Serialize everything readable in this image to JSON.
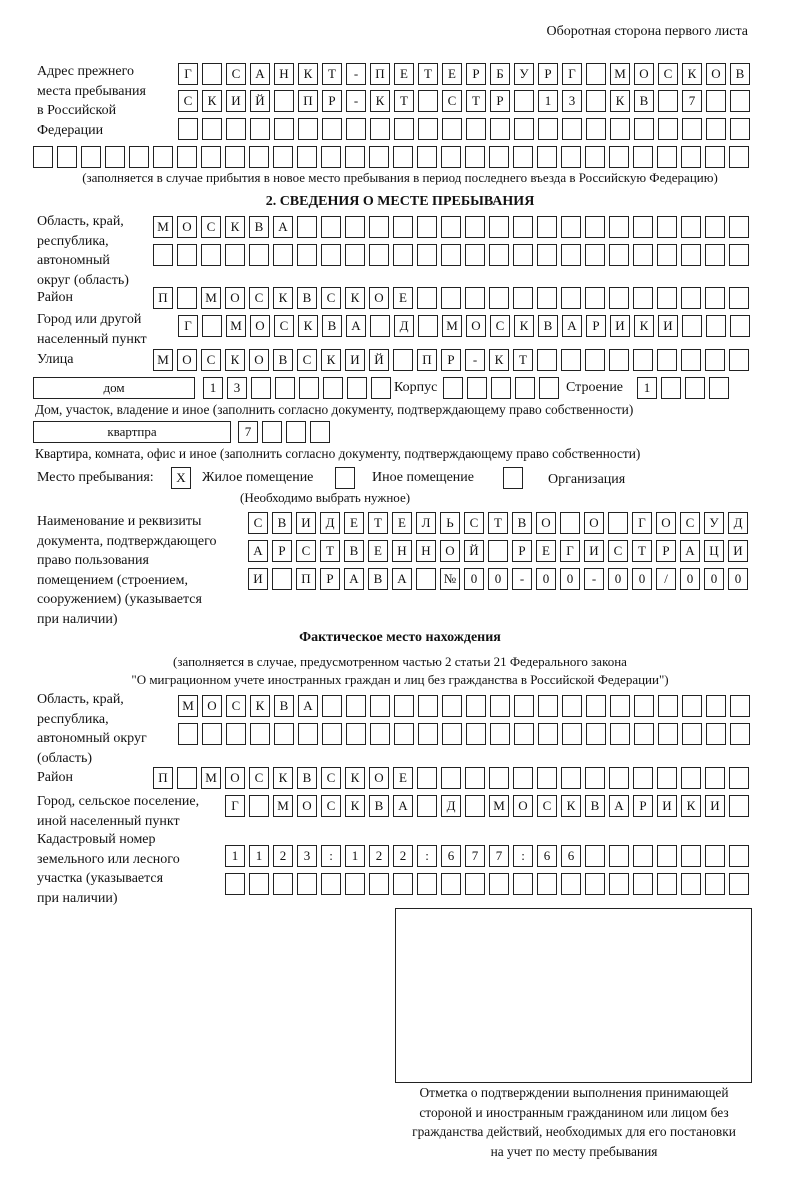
{
  "header": {
    "page_side": "Оборотная сторона первого листа"
  },
  "previous_address": {
    "label": "Адрес прежнего\nместа пребывания\nв Российской\nФедерации",
    "rows": [
      [
        "Г",
        "",
        "С",
        "А",
        "Н",
        "К",
        "Т",
        "-",
        "П",
        "Е",
        "Т",
        "Е",
        "Р",
        "Б",
        "У",
        "Р",
        "Г",
        "",
        "М",
        "О",
        "С",
        "К",
        "О",
        "В"
      ],
      [
        "С",
        "К",
        "И",
        "Й",
        "",
        "П",
        "Р",
        "-",
        "К",
        "Т",
        "",
        "С",
        "Т",
        "Р",
        "",
        "1",
        "3",
        "",
        "К",
        "В",
        "",
        "7",
        "",
        ""
      ],
      [
        "",
        "",
        "",
        "",
        "",
        "",
        "",
        "",
        "",
        "",
        "",
        "",
        "",
        "",
        "",
        "",
        "",
        "",
        "",
        "",
        "",
        "",
        "",
        ""
      ],
      [
        "",
        "",
        "",
        "",
        "",
        "",
        "",
        "",
        "",
        "",
        "",
        "",
        "",
        "",
        "",
        "",
        "",
        "",
        "",
        "",
        "",
        "",
        "",
        "",
        "",
        "",
        "",
        "",
        "",
        ""
      ]
    ],
    "note": "(заполняется в случае прибытия в новое место пребывания в период последнего въезда в Российскую Федерацию)"
  },
  "section2": {
    "title": "2. СВЕДЕНИЯ О МЕСТЕ ПРЕБЫВАНИЯ",
    "region_label": "Область, край,\nреспублика,\nавтономный\nокруг (область)",
    "region_rows": [
      [
        "М",
        "О",
        "С",
        "К",
        "В",
        "А",
        "",
        "",
        "",
        "",
        "",
        "",
        "",
        "",
        "",
        "",
        "",
        "",
        "",
        "",
        "",
        "",
        "",
        "",
        ""
      ],
      [
        "",
        "",
        "",
        "",
        "",
        "",
        "",
        "",
        "",
        "",
        "",
        "",
        "",
        "",
        "",
        "",
        "",
        "",
        "",
        "",
        "",
        "",
        "",
        "",
        ""
      ]
    ],
    "district_label": "Район",
    "district_row": [
      "П",
      "",
      "М",
      "О",
      "С",
      "К",
      "В",
      "С",
      "К",
      "О",
      "Е",
      "",
      "",
      "",
      "",
      "",
      "",
      "",
      "",
      "",
      "",
      "",
      "",
      "",
      ""
    ],
    "city_label": "Город или другой\nнаселенный пункт",
    "city_row": [
      "Г",
      "",
      "М",
      "О",
      "С",
      "К",
      "В",
      "А",
      "",
      "Д",
      "",
      "М",
      "О",
      "С",
      "К",
      "В",
      "А",
      "Р",
      "И",
      "К",
      "И",
      "",
      "",
      ""
    ],
    "street_label": "Улица",
    "street_row": [
      "М",
      "О",
      "С",
      "К",
      "О",
      "В",
      "С",
      "К",
      "И",
      "Й",
      "",
      "П",
      "Р",
      "-",
      "К",
      "Т",
      "",
      "",
      "",
      "",
      "",
      "",
      "",
      "",
      ""
    ],
    "house_type": "дом",
    "house_cells": [
      "1",
      "3",
      "",
      "",
      "",
      "",
      "",
      ""
    ],
    "korpus_label": "Корпус",
    "korpus_cells": [
      "",
      "",
      "",
      "",
      ""
    ],
    "building_label": "Строение",
    "building_cells": [
      "1",
      "",
      "",
      ""
    ],
    "house_note": "Дом, участок, владение и иное (заполнить согласно документу, подтверждающему право собственности)",
    "apt_type": "квартпра",
    "apt_cells": [
      "7",
      "",
      "",
      ""
    ],
    "apt_note": "Квартира, комната, офис и иное (заполнить согласно документу, подтверждающему право собственности)",
    "stay_label": "Место пребывания:",
    "stay_options": [
      {
        "mark": "X",
        "label": "Жилое помещение"
      },
      {
        "mark": "",
        "label": "Иное помещение"
      },
      {
        "mark": "",
        "label": "Организация"
      }
    ],
    "stay_note": "(Необходимо выбрать нужное)",
    "doc_label": "Наименование и реквизиты\nдокумента, подтверждающего\nправо пользования\nпомещением (строением,\nсооружением) (указывается\nпри наличии)",
    "doc_rows": [
      [
        "С",
        "В",
        "И",
        "Д",
        "Е",
        "Т",
        "Е",
        "Л",
        "Ь",
        "С",
        "Т",
        "В",
        "О",
        "",
        "О",
        "",
        "Г",
        "О",
        "С",
        "У",
        "Д"
      ],
      [
        "А",
        "Р",
        "С",
        "Т",
        "В",
        "Е",
        "Н",
        "Н",
        "О",
        "Й",
        "",
        "Р",
        "Е",
        "Г",
        "И",
        "С",
        "Т",
        "Р",
        "А",
        "Ц",
        "И"
      ],
      [
        "И",
        "",
        "П",
        "Р",
        "А",
        "В",
        "А",
        "",
        "№",
        "0",
        "0",
        "-",
        "0",
        "0",
        "-",
        "0",
        "0",
        "/",
        "0",
        "0",
        "0"
      ]
    ]
  },
  "actual": {
    "title": "Фактическое место нахождения",
    "note1": "(заполняется в случае, предусмотренном частью 2 статьи 21 Федерального закона",
    "note2": "\"О миграционном учете иностранных граждан и лиц без гражданства в Российской Федерации\")",
    "region_label": "Область, край,\nреспублика,\nавтономный округ\n(область)",
    "region_rows": [
      [
        "М",
        "О",
        "С",
        "К",
        "В",
        "А",
        "",
        "",
        "",
        "",
        "",
        "",
        "",
        "",
        "",
        "",
        "",
        "",
        "",
        "",
        "",
        "",
        "",
        ""
      ],
      [
        "",
        "",
        "",
        "",
        "",
        "",
        "",
        "",
        "",
        "",
        "",
        "",
        "",
        "",
        "",
        "",
        "",
        "",
        "",
        "",
        "",
        "",
        "",
        ""
      ]
    ],
    "district_label": "Район",
    "district_row": [
      "П",
      "",
      "М",
      "О",
      "С",
      "К",
      "В",
      "С",
      "К",
      "О",
      "Е",
      "",
      "",
      "",
      "",
      "",
      "",
      "",
      "",
      "",
      "",
      "",
      "",
      "",
      ""
    ],
    "city_label": "Город, сельское поселение,\nиной населенный пункт",
    "city_row": [
      "Г",
      "",
      "М",
      "О",
      "С",
      "К",
      "В",
      "А",
      "",
      "Д",
      "",
      "М",
      "О",
      "С",
      "К",
      "В",
      "А",
      "Р",
      "И",
      "К",
      "И",
      ""
    ],
    "cadastral_label": "Кадастровый номер\nземельного или лесного\nучастка (указывается\nпри наличии)",
    "cadastral_rows": [
      [
        "1",
        "1",
        "2",
        "3",
        ":",
        "1",
        "2",
        "2",
        ":",
        "6",
        "7",
        "7",
        ":",
        "6",
        "6",
        "",
        "",
        "",
        "",
        "",
        "",
        ""
      ],
      [
        "",
        "",
        "",
        "",
        "",
        "",
        "",
        "",
        "",
        "",
        "",
        "",
        "",
        "",
        "",
        "",
        "",
        "",
        "",
        "",
        "",
        ""
      ]
    ],
    "stamp_caption": "Отметка о подтверждении выполнения принимающей\nстороной и иностранным гражданином или лицом без\nгражданства действий, необходимых для его постановки\nна учет по месту пребывания"
  }
}
